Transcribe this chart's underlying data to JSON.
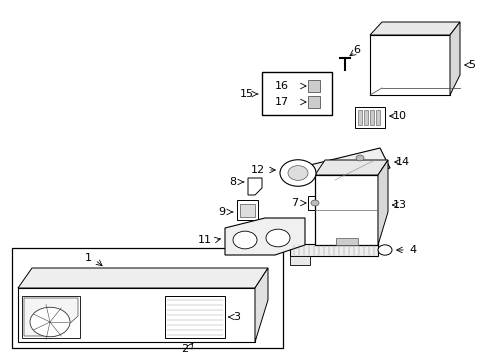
{
  "background": "#ffffff",
  "line_color": "#000000",
  "fig_width": 4.89,
  "fig_height": 3.6,
  "dpi": 100
}
